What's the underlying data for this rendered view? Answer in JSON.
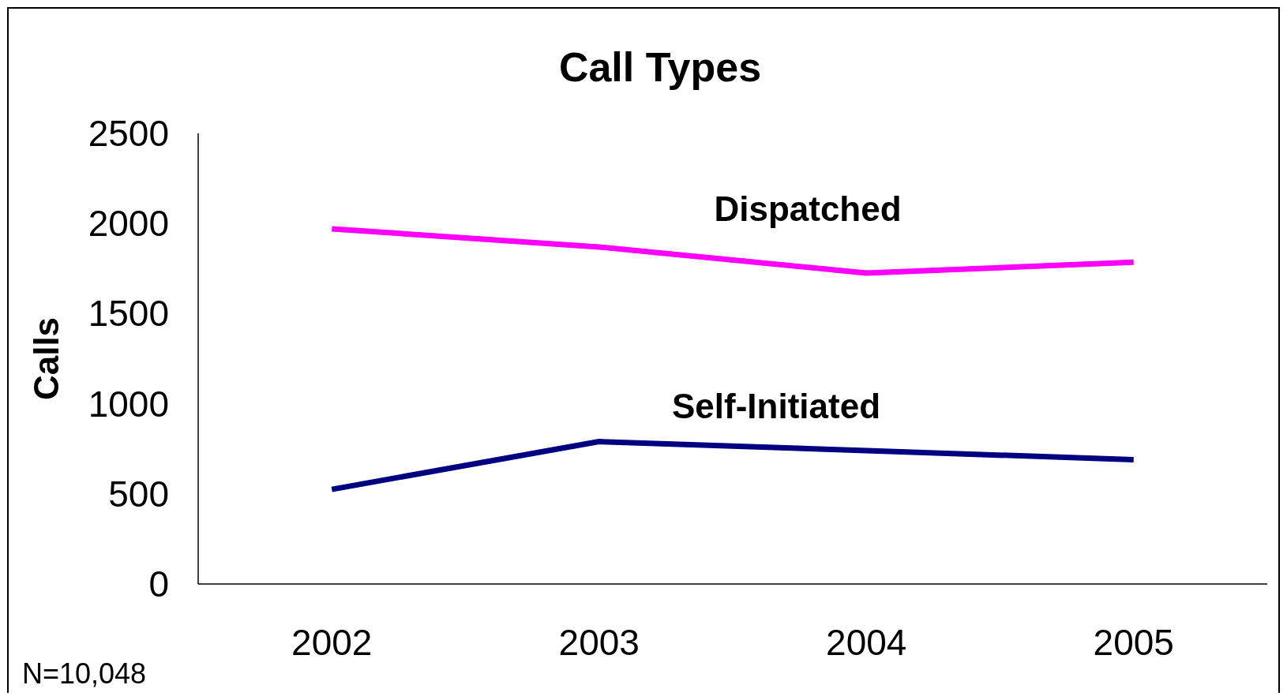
{
  "chart_data": {
    "type": "line",
    "title": "Call Types",
    "ylabel": "Calls",
    "categories": [
      "2002",
      "2003",
      "2004",
      "2005"
    ],
    "series": [
      {
        "name": "Dispatched",
        "color": "#ff00ff",
        "values": [
          1970,
          1870,
          1725,
          1785
        ]
      },
      {
        "name": "Self-Initiated",
        "color": "#000080",
        "values": [
          525,
          790,
          740,
          690
        ]
      }
    ],
    "ylim": [
      0,
      2500
    ],
    "yticks": [
      0,
      500,
      1000,
      1500,
      2000,
      2500
    ],
    "grid": false,
    "marker": "none",
    "line_style": "solid",
    "annotations": [
      "N=10,048"
    ]
  }
}
